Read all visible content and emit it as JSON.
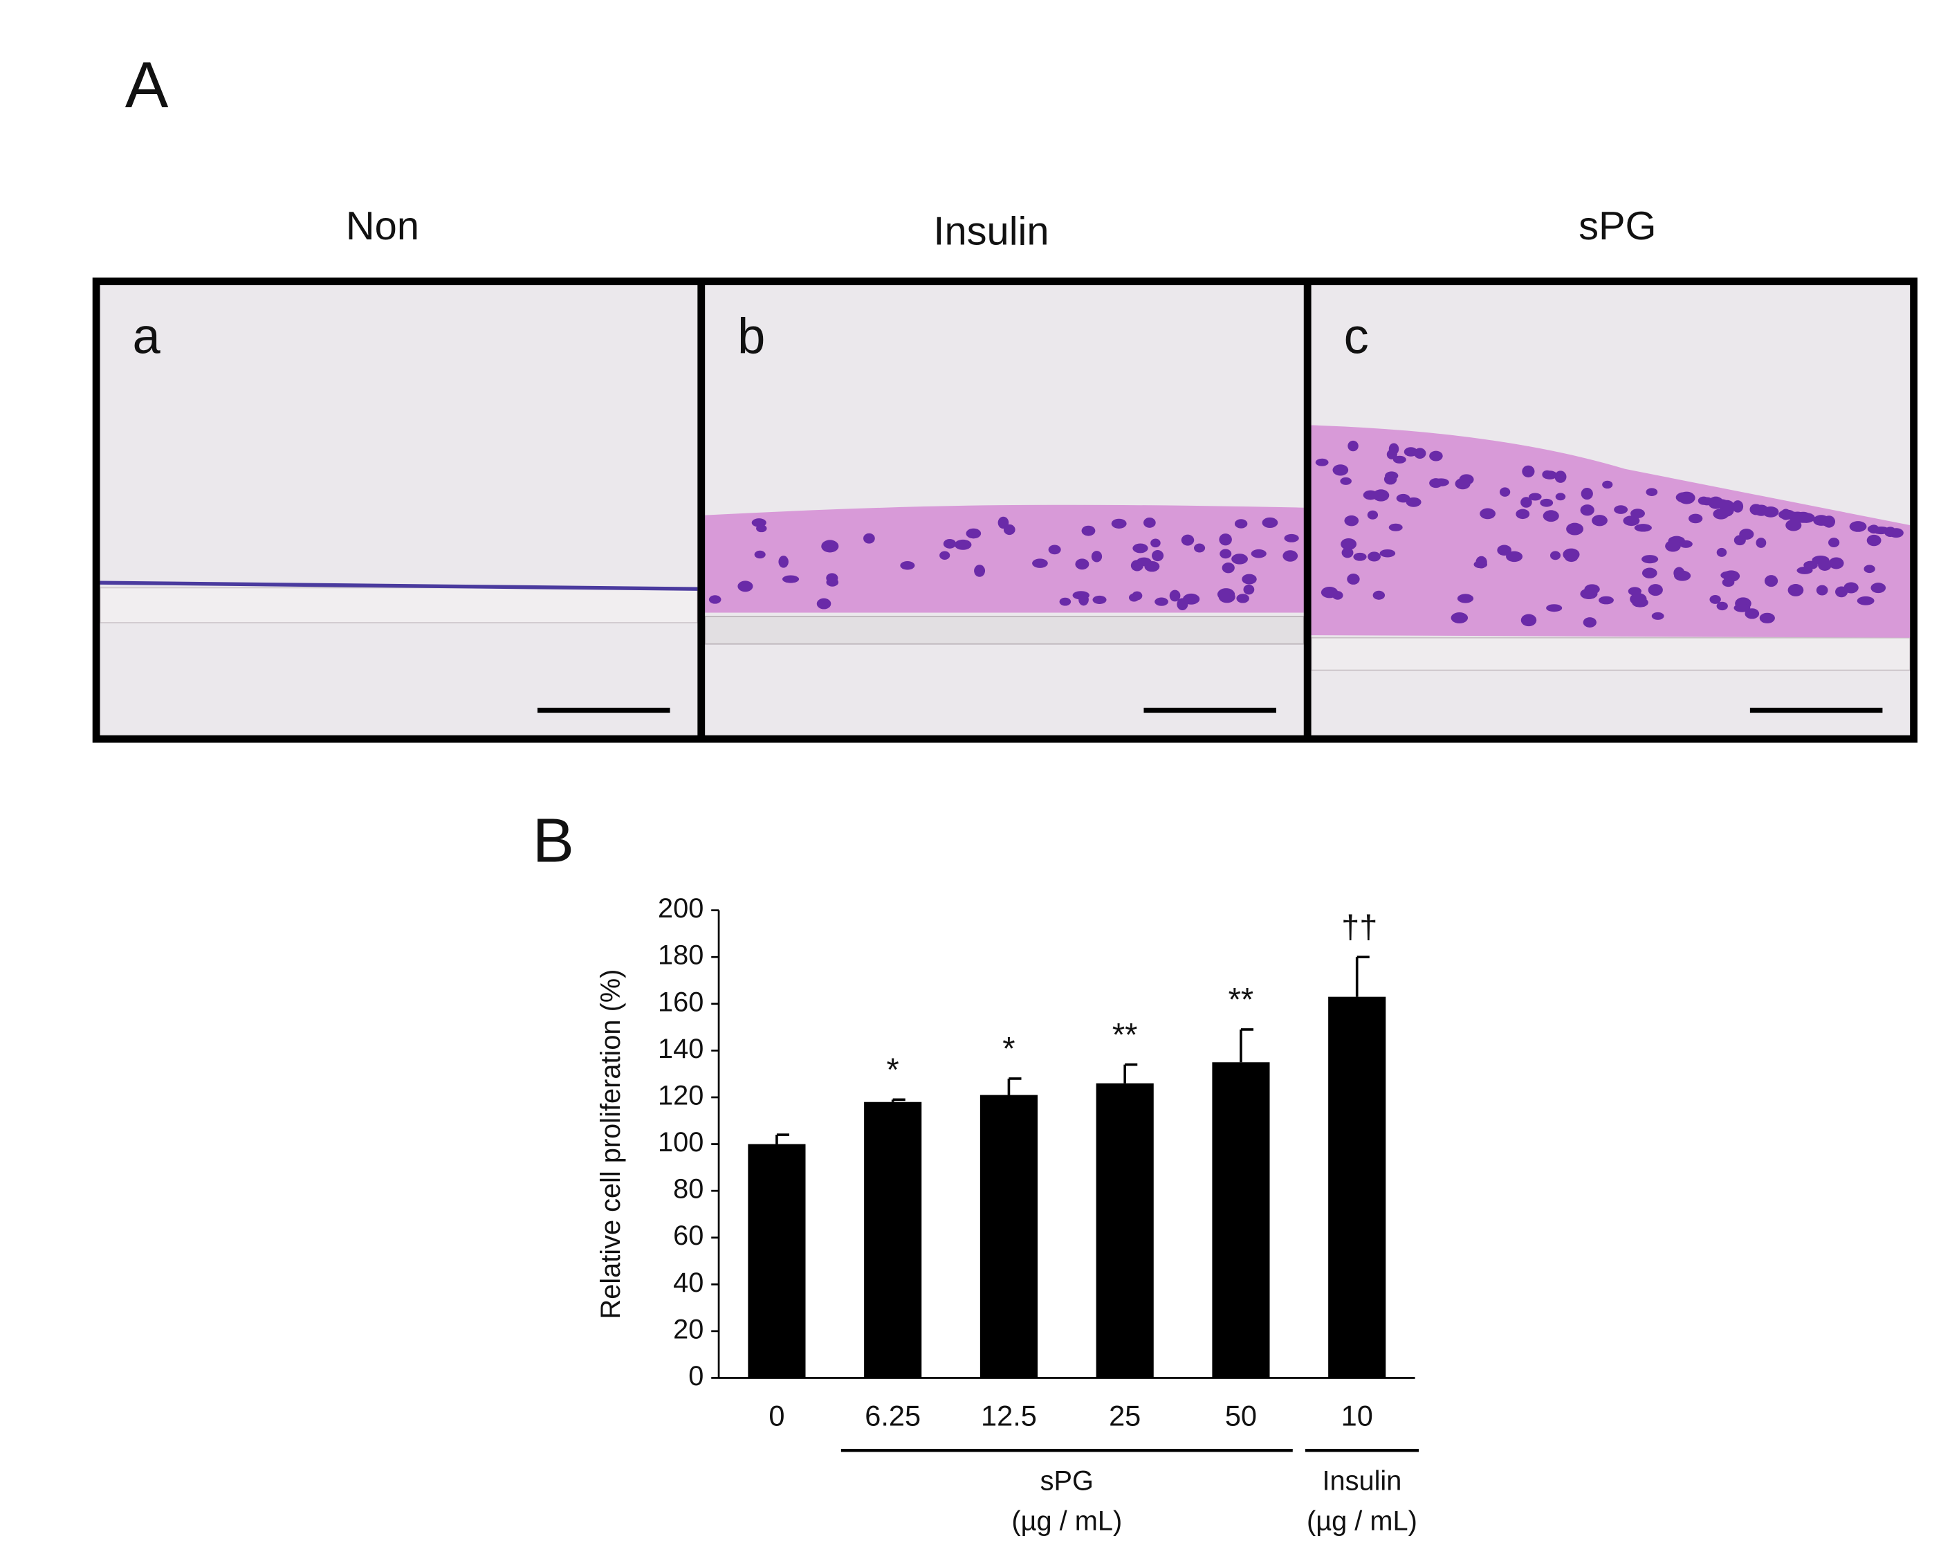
{
  "panel_a": {
    "label": "A",
    "columns": [
      "Non",
      "Insulin",
      "sPG"
    ],
    "panels": [
      "a",
      "b",
      "c"
    ]
  },
  "chart_data": {
    "type": "bar",
    "panel_label": "B",
    "ylabel": "Relative cell proliferation (%)",
    "categories": [
      "0",
      "6.25",
      "12.5",
      "25",
      "50",
      "10"
    ],
    "values": [
      100,
      118,
      121,
      126,
      135,
      163
    ],
    "errors": [
      4,
      1,
      7,
      8,
      14,
      17
    ],
    "annotations": [
      null,
      "*",
      "*",
      "**",
      "**",
      "††"
    ],
    "color": "#000000",
    "ylim": [
      0,
      200
    ],
    "yticks": [
      0,
      20,
      40,
      60,
      80,
      100,
      120,
      140,
      160,
      180,
      200
    ],
    "groups": [
      {
        "name": "sPG",
        "unit": "(µg / mL)"
      },
      {
        "name": "Insulin",
        "unit": "(µg / mL)"
      }
    ]
  }
}
